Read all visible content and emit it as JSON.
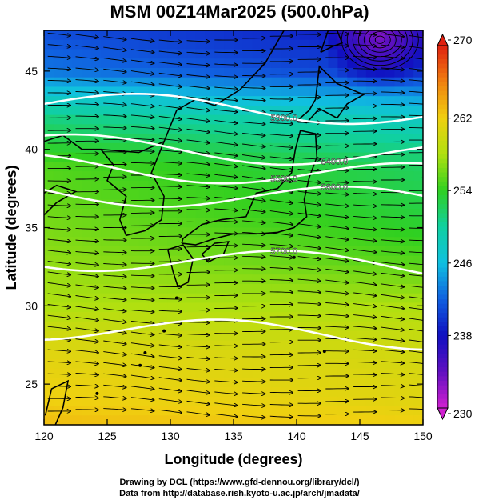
{
  "chart_data": {
    "type": "heatmap",
    "title": "MSM 00Z14Mar2025 (500.0hPa)",
    "xlabel": "Longitude (degrees)",
    "ylabel": "Latitude  (degrees)",
    "xlim": [
      120,
      150
    ],
    "ylim": [
      22.4,
      47.6
    ],
    "x_ticks": [
      "120",
      "125",
      "130",
      "135",
      "140",
      "145",
      "150"
    ],
    "y_ticks": [
      "25",
      "30",
      "35",
      "40",
      "45"
    ],
    "colorbar": {
      "min": 230,
      "max": 270,
      "ticks": [
        "230",
        "238",
        "246",
        "254",
        "262",
        "270"
      ],
      "colors": [
        "#d020d0",
        "#6010c0",
        "#1010c0",
        "#1060e0",
        "#10c0e0",
        "#10d0a0",
        "#30d020",
        "#b0e010",
        "#f0d010",
        "#f08010",
        "#e02010"
      ]
    },
    "contours": [
      {
        "label": "5300.0",
        "lat": 42.6
      },
      {
        "label": "5400.0",
        "lat": 39.9
      },
      {
        "label": "5500.0",
        "lat": 38.6
      },
      {
        "label": "5600.0",
        "lat": 37.0
      },
      {
        "label": "5700.0",
        "lat": 32.8
      },
      {
        "label": "",
        "lat": 28.3
      }
    ],
    "temperature_field_K": {
      "lat": [
        47.6,
        45,
        42,
        39,
        36,
        33,
        30,
        27,
        24,
        22.4
      ],
      "west_120E": [
        241,
        243,
        251,
        255,
        256,
        257,
        258,
        261,
        262,
        263
      ],
      "east_150E": [
        238,
        240,
        248,
        252,
        253,
        255,
        258,
        260,
        261,
        262
      ]
    },
    "grid": false,
    "legend": "colorbar right"
  },
  "credits": {
    "line1": "Drawing by DCL (https://www.gfd-dennou.org/library/dcl/)",
    "line2": "Data from http://database.rish.kyoto-u.ac.jp/arch/jmadata/"
  }
}
